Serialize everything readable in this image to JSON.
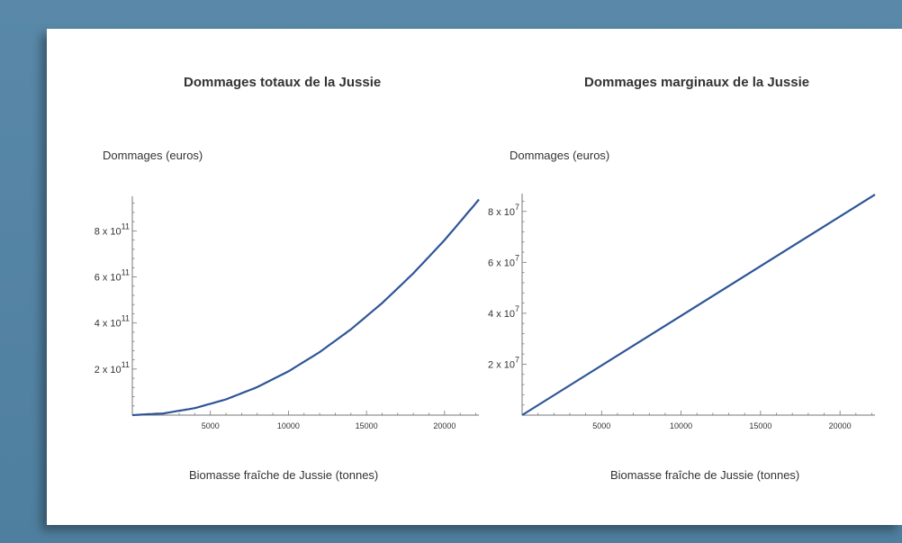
{
  "chart_data": [
    {
      "type": "line",
      "title": "Dommages totaux de la Jussie",
      "ylabel": "Dommages (euros)",
      "xlabel": "Biomasse fraîche de Jussie (tonnes)",
      "xlim": [
        0,
        22200
      ],
      "ylim": [
        0,
        950000000000.0
      ],
      "xticks": [
        {
          "value": 5000,
          "label": "5000"
        },
        {
          "value": 10000,
          "label": "10000"
        },
        {
          "value": 15000,
          "label": "15000"
        },
        {
          "value": 20000,
          "label": "20000"
        }
      ],
      "yticks": [
        {
          "value": 200000000000.0,
          "mant": "2 x 10",
          "exp": "11"
        },
        {
          "value": 400000000000.0,
          "mant": "4 x 10",
          "exp": "11"
        },
        {
          "value": 600000000000.0,
          "mant": "6 x 10",
          "exp": "11"
        },
        {
          "value": 800000000000.0,
          "mant": "8 x 10",
          "exp": "11"
        }
      ],
      "series": [
        {
          "color": "#2f5597",
          "x": [
            0,
            2000,
            4000,
            6000,
            8000,
            10000,
            12000,
            14000,
            16000,
            18000,
            20000,
            22000
          ],
          "y": [
            0,
            7600000000.0,
            30400000000.0,
            68400000000.0,
            121600000000.0,
            190000000000.0,
            273600000000.0,
            372400000000.0,
            486400000000.0,
            615600000000.0,
            760000000000.0,
            919600000000.0
          ]
        }
      ]
    },
    {
      "type": "line",
      "title": "Dommages marginaux de la Jussie",
      "ylabel": "Dommages (euros)",
      "xlabel": "Biomasse fraîche de Jussie (tonnes)",
      "xlim": [
        0,
        22200
      ],
      "ylim": [
        0,
        87000000.0
      ],
      "xticks": [
        {
          "value": 5000,
          "label": "5000"
        },
        {
          "value": 10000,
          "label": "10000"
        },
        {
          "value": 15000,
          "label": "15000"
        },
        {
          "value": 20000,
          "label": "20000"
        }
      ],
      "yticks": [
        {
          "value": 20000000.0,
          "mant": "2 x 10",
          "exp": "7"
        },
        {
          "value": 40000000.0,
          "mant": "4 x 10",
          "exp": "7"
        },
        {
          "value": 60000000.0,
          "mant": "6 x 10",
          "exp": "7"
        },
        {
          "value": 80000000.0,
          "mant": "8 x 10",
          "exp": "7"
        }
      ],
      "series": [
        {
          "color": "#2f5597",
          "x": [
            0,
            22200
          ],
          "y": [
            0,
            86600000.0
          ]
        }
      ]
    }
  ]
}
